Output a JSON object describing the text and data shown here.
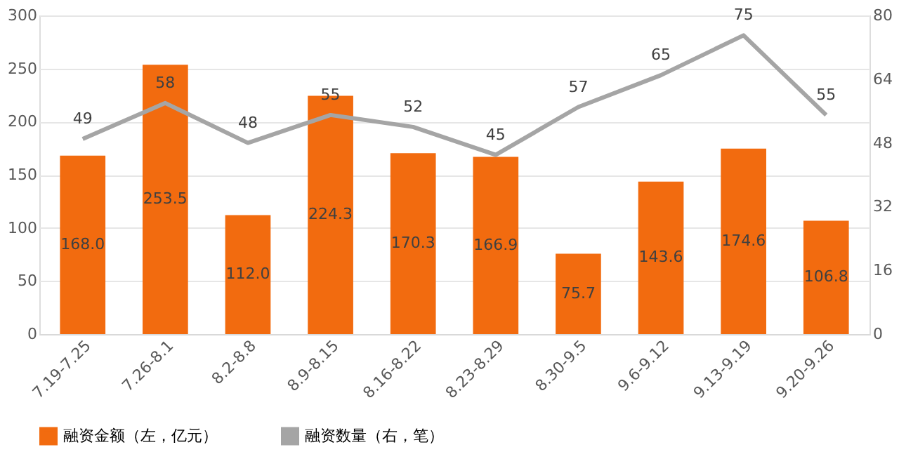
{
  "chart_data": {
    "type": "bar",
    "categories": [
      "7.19-7.25",
      "7.26-8.1",
      "8.2-8.8",
      "8.9-8.15",
      "8.16-8.22",
      "8.23-8.29",
      "8.30-9.5",
      "9.6-9.12",
      "9.13-9.19",
      "9.20-9.26"
    ],
    "series": [
      {
        "name": "融资金额（左，亿元）",
        "color": "#f26b0f",
        "values": [
          168.0,
          253.5,
          112.0,
          224.3,
          170.3,
          166.9,
          75.7,
          143.6,
          174.6,
          106.8
        ],
        "value_labels": [
          "168.0",
          "253.5",
          "112.0",
          "224.3",
          "170.3",
          "166.9",
          "75.7",
          "143.6",
          "174.6",
          "106.8"
        ]
      },
      {
        "name": "融资数量（右，笔）",
        "color": "#a5a5a5",
        "type": "line",
        "axis": "y2",
        "values": [
          49,
          58,
          48,
          55,
          52,
          45,
          57,
          65,
          75,
          55
        ],
        "value_labels": [
          "49",
          "58",
          "48",
          "55",
          "52",
          "45",
          "57",
          "65",
          "75",
          "55"
        ]
      }
    ],
    "ylim": [
      0,
      300
    ],
    "yticks": [
      0,
      50,
      100,
      150,
      200,
      250,
      300
    ],
    "y2lim": [
      0,
      80
    ],
    "y2ticks": [
      0,
      16,
      32,
      48,
      64,
      80
    ],
    "grid": "y",
    "legend": "bottom",
    "marker": "none",
    "line_style": "solid"
  }
}
